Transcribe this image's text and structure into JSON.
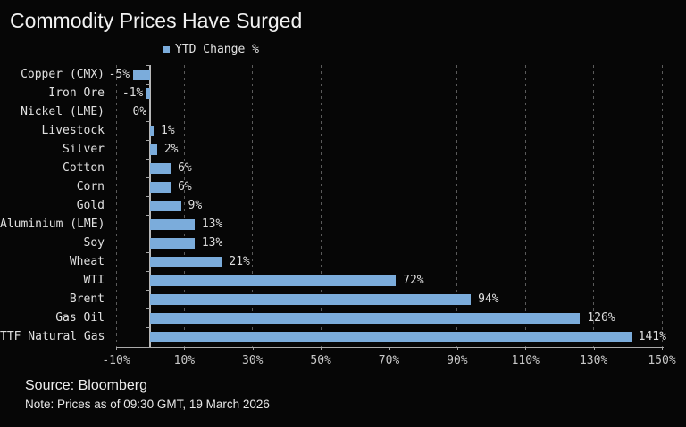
{
  "header": {
    "title": "Commodity Prices Have Surged"
  },
  "footer": {
    "source": "Source: Bloomberg",
    "note": "Note: Prices as of 09:30 GMT, 19 March 2026"
  },
  "chart_data": {
    "type": "bar",
    "orientation": "horizontal",
    "title": "Commodity Prices Have Surged",
    "legend": [
      "YTD Change %"
    ],
    "legend_position": "upper-left-of-plot",
    "categories": [
      "Copper (CMX)",
      "Iron Ore",
      "Nickel (LME)",
      "Livestock",
      "Silver",
      "Cotton",
      "Corn",
      "Gold",
      "Aluminium (LME)",
      "Soy",
      "Wheat",
      "WTI",
      "Brent",
      "Gas Oil",
      "TTF Natural Gas"
    ],
    "values": [
      -5,
      -1,
      0,
      1,
      2,
      6,
      6,
      9,
      13,
      13,
      21,
      72,
      94,
      126,
      141
    ],
    "value_labels": [
      "-5%",
      "-1%",
      "0%",
      "1%",
      "2%",
      "6%",
      "6%",
      "9%",
      "13%",
      "13%",
      "21%",
      "72%",
      "94%",
      "126%",
      "141%"
    ],
    "xlabel": "",
    "ylabel": "",
    "xlim": [
      -10,
      150
    ],
    "x_ticks": [
      {
        "v": -10,
        "label": "-10%"
      },
      {
        "v": 10,
        "label": "10%"
      },
      {
        "v": 30,
        "label": "30%"
      },
      {
        "v": 50,
        "label": "50%"
      },
      {
        "v": 70,
        "label": "70%"
      },
      {
        "v": 90,
        "label": "90%"
      },
      {
        "v": 110,
        "label": "110%"
      },
      {
        "v": 130,
        "label": "130%"
      },
      {
        "v": 150,
        "label": "150%"
      }
    ],
    "grid": "dashed-vertical-on",
    "colors": {
      "bar": "#7bacdb",
      "background": "#060606",
      "grid_line": "#5a5a5a",
      "axis_line": "#aaaaaa",
      "title_text": "#f1f1f1",
      "label_text": "#e0e0e0",
      "tick_text": "#c8c8c8"
    }
  }
}
